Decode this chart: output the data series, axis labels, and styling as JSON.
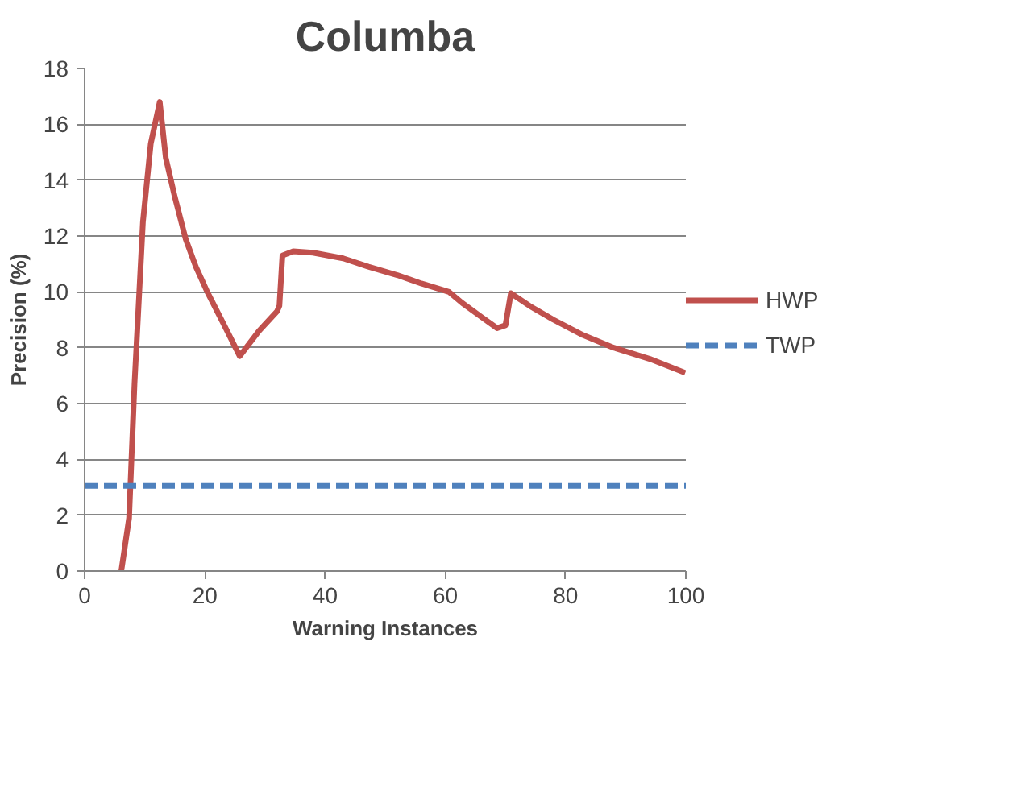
{
  "chart_data": {
    "type": "line",
    "title": "Columba",
    "xlabel": "Warning Instances",
    "ylabel": "Precision (%)",
    "xlim": [
      0,
      100
    ],
    "xticks": [
      0,
      20,
      40,
      60,
      80,
      100
    ],
    "ylim": [
      0,
      18
    ],
    "yticks": [
      0,
      2,
      4,
      6,
      8,
      10,
      12,
      14,
      16,
      18
    ],
    "grid": "y",
    "legend": "right",
    "marker": "none",
    "series": [
      {
        "name": "HWP",
        "color": "#c0504d",
        "line_style": "solid",
        "x": [
          6.1,
          7.4,
          8.3,
          9.7,
          11,
          12.5,
          13.5,
          15,
          16.8,
          18.5,
          20.4,
          23,
          25.8,
          29,
          32,
          32.4,
          32.9,
          34.7,
          38,
          43,
          47.2,
          52,
          56,
          60.6,
          62.8,
          66,
          68.6,
          70,
          70.9,
          74,
          78,
          82.9,
          88,
          94,
          99.9
        ],
        "values": [
          0,
          1.9,
          6.7,
          12.5,
          15.3,
          16.8,
          14.8,
          13.4,
          11.9,
          10.9,
          10.0,
          8.9,
          7.7,
          8.6,
          9.3,
          9.5,
          11.3,
          11.45,
          11.4,
          11.2,
          10.9,
          10.6,
          10.3,
          10.0,
          9.6,
          9.1,
          8.7,
          8.8,
          9.95,
          9.5,
          9.0,
          8.45,
          8.0,
          7.6,
          7.1
        ]
      },
      {
        "name": "TWP",
        "color": "#4f81bd",
        "line_style": "dashed",
        "x": [
          0,
          100
        ],
        "values": [
          3.05,
          3.05
        ]
      }
    ]
  }
}
